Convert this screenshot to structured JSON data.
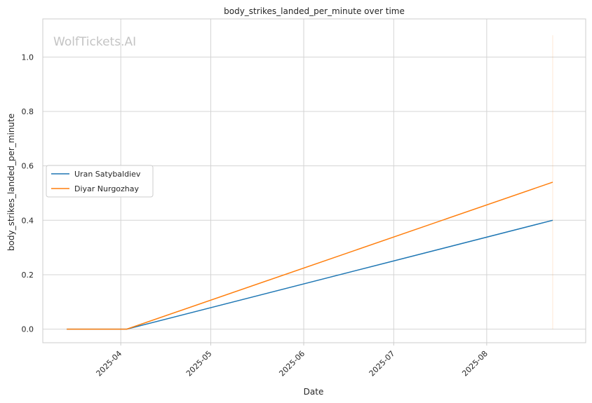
{
  "watermark": "WolfTickets.AI",
  "chart_data": {
    "type": "line",
    "title": "body_strikes_landed_per_minute over time",
    "xlabel": "Date",
    "ylabel": "body_strikes_landed_per_minute",
    "xlim": [
      "2025-03-06",
      "2025-09-03"
    ],
    "ylim": [
      -0.05,
      1.14
    ],
    "x_ticks": [
      "2025-04-01",
      "2025-05-01",
      "2025-06-01",
      "2025-07-01",
      "2025-08-01"
    ],
    "x_tick_labels": [
      "2025-04",
      "2025-05",
      "2025-06",
      "2025-07",
      "2025-08"
    ],
    "y_ticks": [
      0.0,
      0.2,
      0.4,
      0.6,
      0.8,
      1.0
    ],
    "y_tick_labels": [
      "0.0",
      "0.2",
      "0.4",
      "0.6",
      "0.8",
      "1.0"
    ],
    "grid": true,
    "legend_position": "center-left",
    "series": [
      {
        "name": "Uran Satybaldiev",
        "color": "#1f77b4",
        "x": [
          "2025-03-14",
          "2025-04-03",
          "2025-08-23"
        ],
        "y": [
          0.0,
          0.0,
          0.4
        ]
      },
      {
        "name": "Diyar Nurgozhay",
        "color": "#ff7f0e",
        "x": [
          "2025-03-14",
          "2025-04-03",
          "2025-08-23"
        ],
        "y": [
          0.0,
          0.0,
          0.54
        ]
      }
    ],
    "annotations": [
      {
        "type": "vline",
        "x": "2025-08-23",
        "y_range": [
          0.0,
          1.08
        ],
        "color": "#ff7f0e"
      }
    ]
  }
}
